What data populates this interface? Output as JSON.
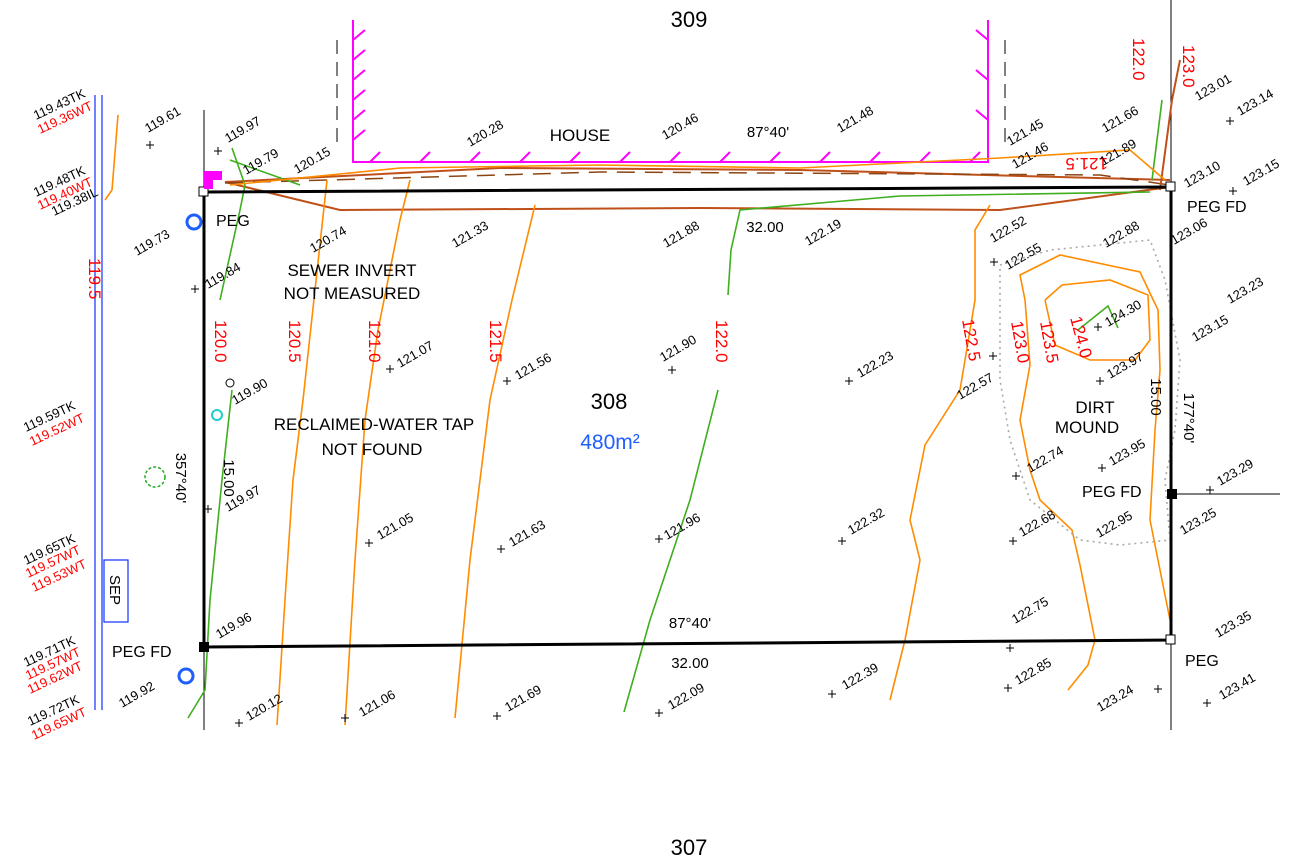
{
  "lots": {
    "north": "309",
    "main": "308",
    "south": "307",
    "area": "480m²"
  },
  "labels": {
    "house": "HOUSE",
    "sewer_line1": "SEWER INVERT",
    "sewer_line2": "NOT MEASURED",
    "tap_line1": "RECLAIMED-WATER TAP",
    "tap_line2": "NOT FOUND",
    "dirt_line1": "DIRT",
    "dirt_line2": "MOUND",
    "sep": "SEP"
  },
  "bearings": {
    "top": "87°40'",
    "bottom": "87°40'",
    "left": "357°40'",
    "right": "177°40'"
  },
  "distances": {
    "top": "32.00",
    "bottom": "32.00",
    "left": "15.00",
    "right": "15.00"
  },
  "pegs": {
    "nw": "PEG",
    "ne": "PEG FD",
    "e": "PEG FD",
    "sw": "PEG FD",
    "se": "PEG"
  },
  "contours": [
    "120.0",
    "120.5",
    "121.0",
    "121.5",
    "122.0",
    "122.5",
    "123.0",
    "123.5",
    "124.0",
    "122.0",
    "123.0",
    "121.5",
    "119.5"
  ],
  "spot_heights": [
    "119.61",
    "119.97",
    "119.79",
    "120.15",
    "120.28",
    "120.46",
    "121.48",
    "121.45",
    "121.46",
    "121.66",
    "121.89",
    "123.01",
    "123.14",
    "123.10",
    "123.15",
    "119.73",
    "119.84",
    "120.74",
    "121.33",
    "121.88",
    "122.19",
    "122.52",
    "122.55",
    "122.88",
    "123.06",
    "123.23",
    "123.15",
    "124.30",
    "123.97",
    "121.07",
    "121.56",
    "121.90",
    "122.23",
    "122.57",
    "119.90",
    "119.97",
    "123.95",
    "122.74",
    "123.29",
    "121.05",
    "121.63",
    "121.96",
    "122.32",
    "122.68",
    "122.95",
    "123.25",
    "119.96",
    "122.75",
    "123.35",
    "119.92",
    "120.12",
    "121.06",
    "121.69",
    "122.09",
    "122.39",
    "122.85",
    "123.24",
    "123.41"
  ],
  "boundary_marks": [
    "119.43TK",
    "119.36WT",
    "119.48TK",
    "119.40WT",
    "119.38IL",
    "119.59TK",
    "119.52WT",
    "119.65TK",
    "119.57WT",
    "119.53WT",
    "119.71TK",
    "119.57WT",
    "119.62WT",
    "119.72TK",
    "119.65WT"
  ],
  "colors": {
    "boundary": "#000000",
    "contour_label": "#ff0000",
    "contour_major": "#ff8c00",
    "contour_minor": "#3fae1f",
    "house": "#ff00ff",
    "area": "#1f5fff",
    "drain": "#2040ff",
    "bank": "#c0501a"
  }
}
